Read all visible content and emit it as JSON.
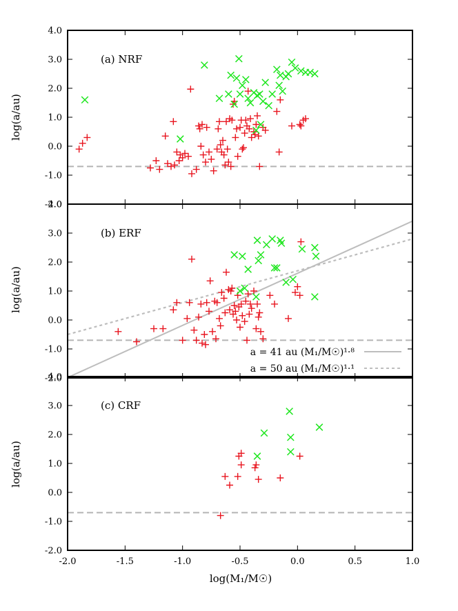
{
  "chart_data": {
    "type": "scatter",
    "xlabel": "log(M₁/M☉)",
    "xlim": [
      -2.0,
      1.0
    ],
    "ylim": [
      -2.0,
      4.0
    ],
    "x_ticks": [
      "-2.0",
      "-1.5",
      "-1.0",
      "-0.5",
      "0.0",
      "0.5",
      "1.0"
    ],
    "y_ticks": [
      "-2.0",
      "-1.0",
      "0.0",
      "1.0",
      "2.0",
      "3.0",
      "4.0"
    ],
    "ylabel": "log(a/au)",
    "reference_line": {
      "y": -0.7,
      "style": "dashed",
      "color": "#b4b4b4"
    },
    "colors": {
      "plus": "#e8141e",
      "cross": "#1ee61e",
      "fit": "#bdbdbd"
    },
    "panels": [
      {
        "label": "(a) NRF",
        "series": [
          {
            "marker": "plus",
            "points": [
              [
                -1.9,
                -0.1
              ],
              [
                -1.87,
                0.1
              ],
              [
                -1.83,
                0.3
              ],
              [
                -1.28,
                -0.75
              ],
              [
                -1.23,
                -0.5
              ],
              [
                -1.2,
                -0.8
              ],
              [
                -1.15,
                0.35
              ],
              [
                -1.13,
                -0.6
              ],
              [
                -1.1,
                -0.7
              ],
              [
                -1.08,
                0.85
              ],
              [
                -1.07,
                -0.65
              ],
              [
                -1.05,
                -0.2
              ],
              [
                -1.03,
                -0.5
              ],
              [
                -1.02,
                -0.3
              ],
              [
                -1.0,
                -0.4
              ],
              [
                -0.98,
                -0.25
              ],
              [
                -0.95,
                -0.35
              ],
              [
                -0.93,
                1.97
              ],
              [
                -0.92,
                -0.95
              ],
              [
                -0.88,
                -0.8
              ],
              [
                -0.86,
                0.7
              ],
              [
                -0.85,
                0.6
              ],
              [
                -0.84,
                0.0
              ],
              [
                -0.83,
                0.75
              ],
              [
                -0.82,
                -0.3
              ],
              [
                -0.8,
                -0.55
              ],
              [
                -0.79,
                0.65
              ],
              [
                -0.77,
                -0.2
              ],
              [
                -0.75,
                -0.45
              ],
              [
                -0.73,
                -0.85
              ],
              [
                -0.7,
                -0.1
              ],
              [
                -0.69,
                0.6
              ],
              [
                -0.68,
                0.85
              ],
              [
                -0.67,
                0.05
              ],
              [
                -0.66,
                -0.2
              ],
              [
                -0.65,
                0.2
              ],
              [
                -0.64,
                -0.3
              ],
              [
                -0.63,
                -0.65
              ],
              [
                -0.62,
                0.85
              ],
              [
                -0.61,
                -0.1
              ],
              [
                -0.6,
                -0.55
              ],
              [
                -0.59,
                0.95
              ],
              [
                -0.58,
                -0.7
              ],
              [
                -0.57,
                0.9
              ],
              [
                -0.56,
                1.45
              ],
              [
                -0.55,
                1.55
              ],
              [
                -0.54,
                0.3
              ],
              [
                -0.53,
                0.6
              ],
              [
                -0.52,
                -0.35
              ],
              [
                -0.5,
                0.65
              ],
              [
                -0.49,
                0.9
              ],
              [
                -0.48,
                -0.1
              ],
              [
                -0.47,
                -0.05
              ],
              [
                -0.46,
                0.45
              ],
              [
                -0.45,
                0.9
              ],
              [
                -0.44,
                0.7
              ],
              [
                -0.43,
                1.9
              ],
              [
                -0.42,
                0.6
              ],
              [
                -0.41,
                0.95
              ],
              [
                -0.4,
                0.3
              ],
              [
                -0.38,
                0.5
              ],
              [
                -0.37,
                0.4
              ],
              [
                -0.36,
                0.75
              ],
              [
                -0.35,
                1.05
              ],
              [
                -0.34,
                0.35
              ],
              [
                -0.33,
                -0.7
              ],
              [
                -0.3,
                0.65
              ],
              [
                -0.28,
                0.55
              ],
              [
                -0.18,
                1.2
              ],
              [
                -0.16,
                -0.2
              ],
              [
                -0.15,
                1.6
              ],
              [
                -0.05,
                0.7
              ],
              [
                0.02,
                0.75
              ],
              [
                0.03,
                0.7
              ],
              [
                0.05,
                0.9
              ],
              [
                0.07,
                0.95
              ]
            ]
          },
          {
            "marker": "cross",
            "points": [
              [
                -1.85,
                1.6
              ],
              [
                -1.02,
                0.25
              ],
              [
                -0.81,
                2.8
              ],
              [
                -0.68,
                1.65
              ],
              [
                -0.6,
                1.8
              ],
              [
                -0.58,
                2.45
              ],
              [
                -0.55,
                1.45
              ],
              [
                -0.53,
                2.35
              ],
              [
                -0.51,
                3.02
              ],
              [
                -0.5,
                1.8
              ],
              [
                -0.48,
                2.1
              ],
              [
                -0.45,
                2.3
              ],
              [
                -0.43,
                1.65
              ],
              [
                -0.41,
                1.5
              ],
              [
                -0.38,
                1.85
              ],
              [
                -0.35,
                1.75
              ],
              [
                -0.33,
                1.8
              ],
              [
                -0.32,
                0.75
              ],
              [
                -0.3,
                1.55
              ],
              [
                -0.28,
                2.2
              ],
              [
                -0.25,
                1.4
              ],
              [
                -0.22,
                1.8
              ],
              [
                -0.18,
                2.65
              ],
              [
                -0.16,
                2.1
              ],
              [
                -0.15,
                2.45
              ],
              [
                -0.13,
                1.9
              ],
              [
                -0.1,
                2.4
              ],
              [
                -0.08,
                2.5
              ],
              [
                -0.05,
                2.9
              ],
              [
                -0.02,
                2.7
              ],
              [
                0.03,
                2.6
              ],
              [
                0.07,
                2.55
              ],
              [
                0.11,
                2.55
              ],
              [
                0.15,
                2.5
              ],
              [
                -0.36,
                0.55
              ]
            ]
          }
        ]
      },
      {
        "label": "(b) ERF",
        "series": [
          {
            "marker": "plus",
            "points": [
              [
                -1.56,
                -0.4
              ],
              [
                -1.4,
                -0.75
              ],
              [
                -1.25,
                -0.3
              ],
              [
                -1.17,
                -0.3
              ],
              [
                -1.08,
                0.35
              ],
              [
                -1.05,
                0.6
              ],
              [
                -1.0,
                -0.7
              ],
              [
                -0.96,
                0.05
              ],
              [
                -0.94,
                0.6
              ],
              [
                -0.92,
                2.1
              ],
              [
                -0.9,
                -0.35
              ],
              [
                -0.88,
                -0.7
              ],
              [
                -0.86,
                0.1
              ],
              [
                -0.84,
                0.55
              ],
              [
                -0.83,
                -0.8
              ],
              [
                -0.81,
                -0.5
              ],
              [
                -0.8,
                -0.85
              ],
              [
                -0.79,
                0.6
              ],
              [
                -0.77,
                0.3
              ],
              [
                -0.76,
                1.35
              ],
              [
                -0.74,
                -0.4
              ],
              [
                -0.72,
                0.65
              ],
              [
                -0.71,
                -0.65
              ],
              [
                -0.7,
                0.6
              ],
              [
                -0.68,
                0.05
              ],
              [
                -0.67,
                -0.2
              ],
              [
                -0.66,
                0.95
              ],
              [
                -0.64,
                0.75
              ],
              [
                -0.63,
                0.25
              ],
              [
                -0.62,
                1.65
              ],
              [
                -0.6,
                1.05
              ],
              [
                -0.59,
                0.35
              ],
              [
                -0.58,
                1.0
              ],
              [
                -0.57,
                1.1
              ],
              [
                -0.56,
                0.2
              ],
              [
                -0.55,
                0.5
              ],
              [
                -0.54,
                0.3
              ],
              [
                -0.53,
                0.0
              ],
              [
                -0.52,
                0.85
              ],
              [
                -0.51,
                0.45
              ],
              [
                -0.5,
                -0.25
              ],
              [
                -0.49,
                0.55
              ],
              [
                -0.48,
                0.15
              ],
              [
                -0.46,
                -0.05
              ],
              [
                -0.45,
                0.65
              ],
              [
                -0.44,
                -0.7
              ],
              [
                -0.43,
                0.9
              ],
              [
                -0.42,
                0.2
              ],
              [
                -0.41,
                0.55
              ],
              [
                -0.4,
                0.4
              ],
              [
                -0.38,
                1.0
              ],
              [
                -0.36,
                -0.3
              ],
              [
                -0.35,
                0.55
              ],
              [
                -0.34,
                0.1
              ],
              [
                -0.33,
                0.25
              ],
              [
                -0.32,
                -0.4
              ],
              [
                -0.3,
                -0.65
              ],
              [
                -0.24,
                0.85
              ],
              [
                -0.2,
                0.55
              ],
              [
                -0.08,
                0.05
              ],
              [
                -0.02,
                0.95
              ],
              [
                0.0,
                1.15
              ],
              [
                0.02,
                0.85
              ],
              [
                0.03,
                2.7
              ]
            ]
          },
          {
            "marker": "cross",
            "points": [
              [
                -0.55,
                2.25
              ],
              [
                -0.5,
                1.0
              ],
              [
                -0.48,
                2.2
              ],
              [
                -0.46,
                1.1
              ],
              [
                -0.43,
                1.75
              ],
              [
                -0.36,
                0.8
              ],
              [
                -0.35,
                2.75
              ],
              [
                -0.34,
                2.05
              ],
              [
                -0.32,
                2.25
              ],
              [
                -0.27,
                2.6
              ],
              [
                -0.2,
                1.8
              ],
              [
                -0.18,
                1.8
              ],
              [
                -0.15,
                2.75
              ],
              [
                -0.14,
                2.65
              ],
              [
                -0.1,
                1.3
              ],
              [
                -0.04,
                1.4
              ],
              [
                0.04,
                2.45
              ],
              [
                0.15,
                2.5
              ],
              [
                0.16,
                2.2
              ],
              [
                0.15,
                0.8
              ],
              [
                -0.22,
                2.8
              ]
            ]
          }
        ],
        "legend": [
          {
            "label": "a = 41 au (M₁/M☉)¹·⁸",
            "style": "solid"
          },
          {
            "label": "a = 50 au (M₁/M☉)¹·¹",
            "style": "dashed"
          }
        ]
      },
      {
        "label": "(c) CRF",
        "series": [
          {
            "marker": "plus",
            "points": [
              [
                -0.67,
                -0.8
              ],
              [
                -0.63,
                0.55
              ],
              [
                -0.59,
                0.25
              ],
              [
                -0.52,
                0.55
              ],
              [
                -0.51,
                1.25
              ],
              [
                -0.49,
                0.95
              ],
              [
                -0.49,
                1.35
              ],
              [
                -0.37,
                0.85
              ],
              [
                -0.36,
                0.95
              ],
              [
                -0.34,
                0.45
              ],
              [
                -0.15,
                0.5
              ],
              [
                0.02,
                1.25
              ]
            ]
          },
          {
            "marker": "cross",
            "points": [
              [
                -0.35,
                1.25
              ],
              [
                -0.29,
                2.05
              ],
              [
                -0.07,
                2.8
              ],
              [
                -0.06,
                1.9
              ],
              [
                -0.06,
                1.4
              ],
              [
                0.19,
                2.25
              ]
            ]
          }
        ]
      }
    ]
  }
}
